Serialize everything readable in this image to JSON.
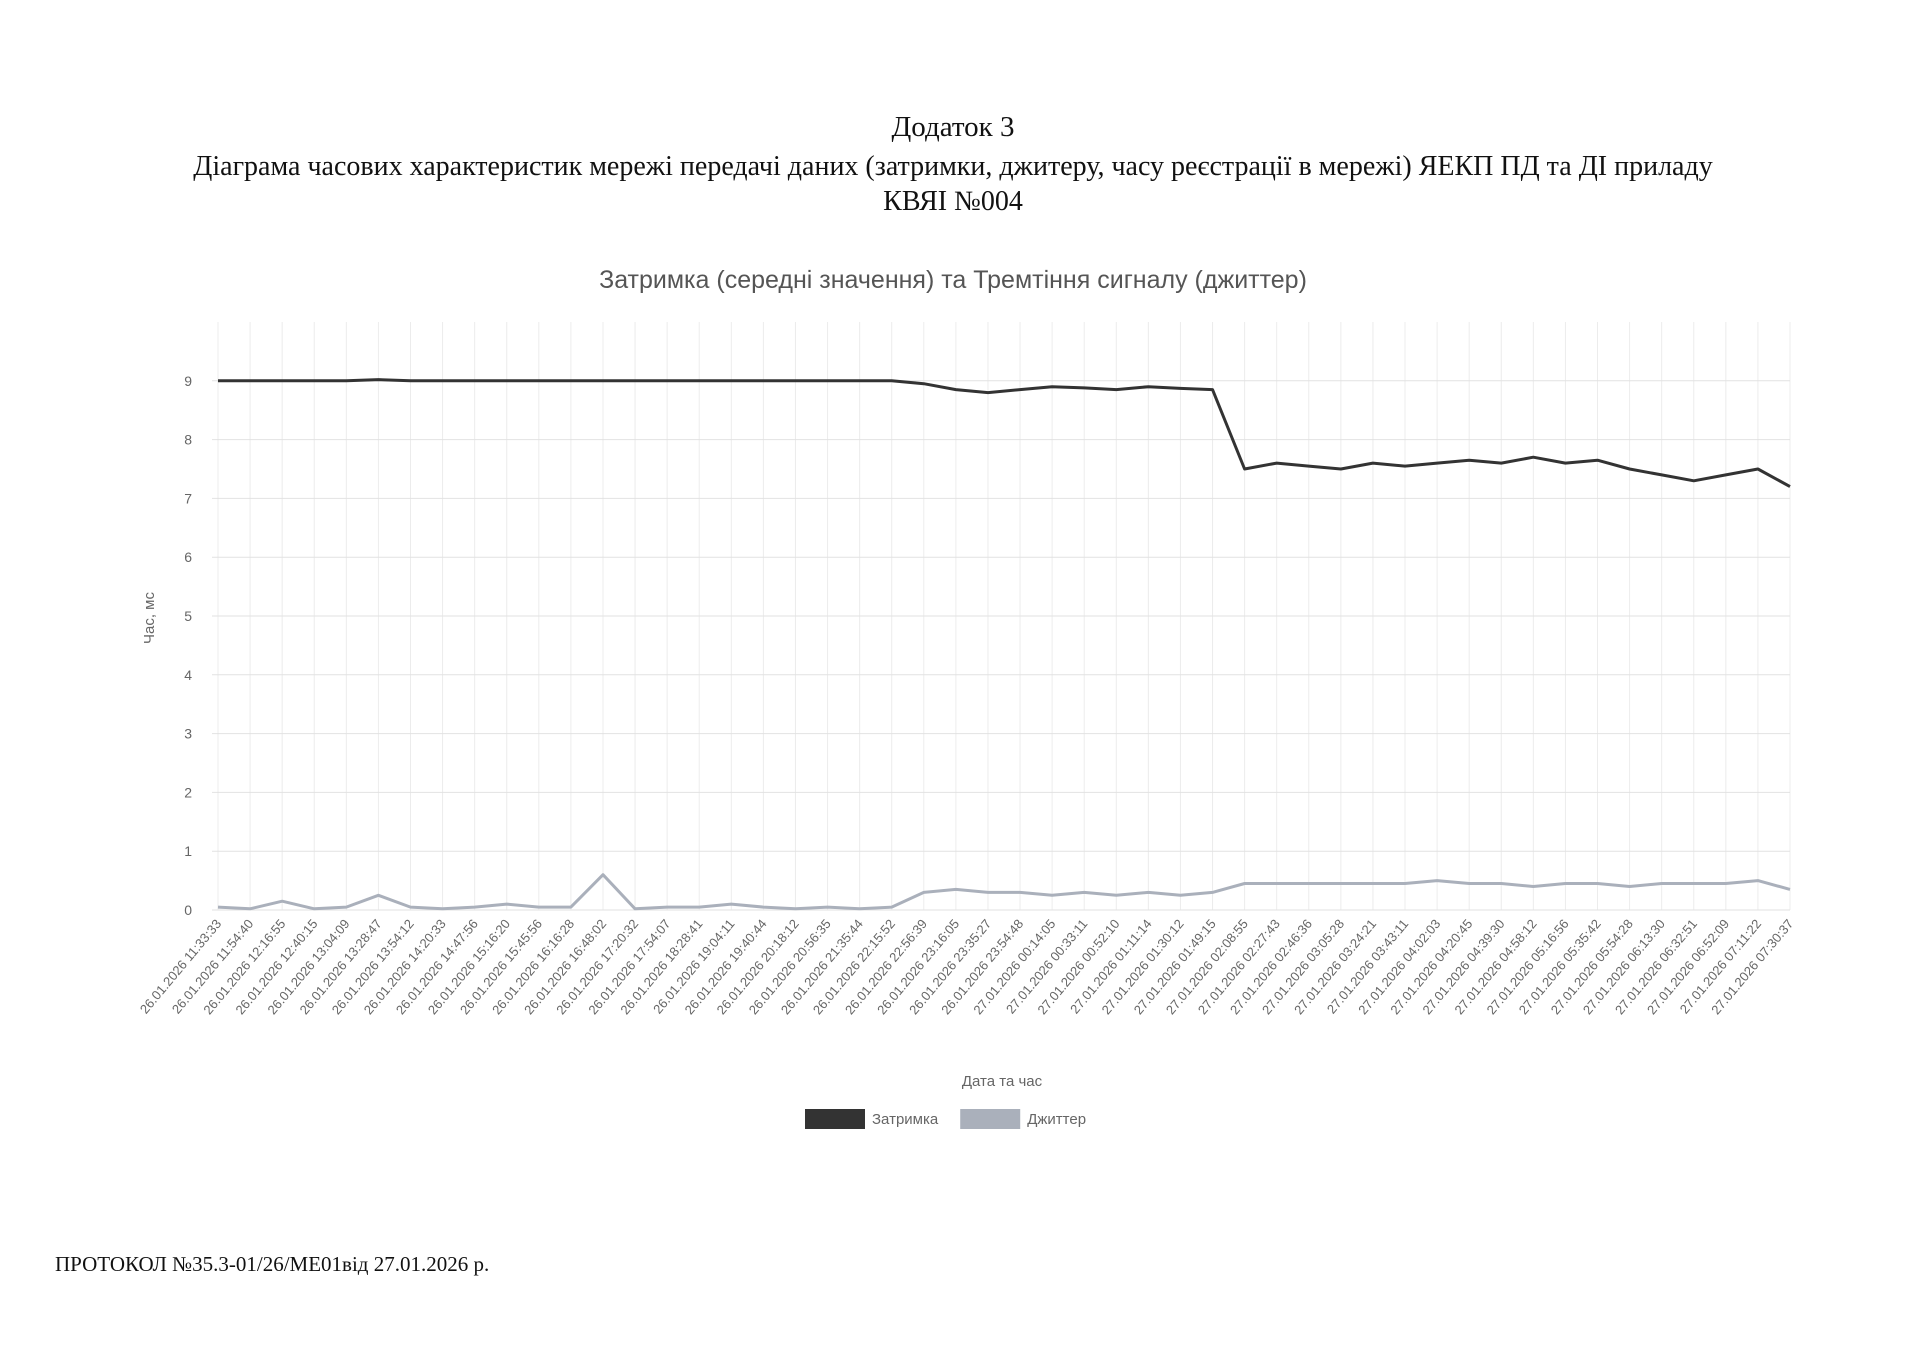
{
  "header": {
    "appendix": "Додаток 3",
    "lines": [
      "Діаграма часових характеристик мережі передачі даних (затримки, джитеру, часу реєстрації в мережі) ЯЕКП ПД та ДІ приладу",
      "КВЯІ №004"
    ]
  },
  "chart_data": {
    "type": "line",
    "title": "Затримка (середні значення) та Тремтіння сигналу (джиттер)",
    "x_label": "Дата та час",
    "y_label": "Час, мс",
    "categories": [
      "26.01.2026 11:33:33",
      "26.01.2026 11:54:40",
      "26.01.2026 12:16:55",
      "26.01.2026 12:40:15",
      "26.01.2026 13:04:09",
      "26.01.2026 13:28:47",
      "26.01.2026 13:54:12",
      "26.01.2026 14:20:33",
      "26.01.2026 14:47:56",
      "26.01.2026 15:16:20",
      "26.01.2026 15:45:56",
      "26.01.2026 16:16:28",
      "26.01.2026 16:48:02",
      "26.01.2026 17:20:32",
      "26.01.2026 17:54:07",
      "26.01.2026 18:28:41",
      "26.01.2026 19:04:11",
      "26.01.2026 19:40:44",
      "26.01.2026 20:18:12",
      "26.01.2026 20:56:35",
      "26.01.2026 21:35:44",
      "26.01.2026 22:15:52",
      "26.01.2026 22:56:39",
      "26.01.2026 23:16:05",
      "26.01.2026 23:35:27",
      "26.01.2026 23:54:48",
      "27.01.2026 00:14:05",
      "27.01.2026 00:33:11",
      "27.01.2026 00:52:10",
      "27.01.2026 01:11:14",
      "27.01.2026 01:30:12",
      "27.01.2026 01:49:15",
      "27.01.2026 02:08:55",
      "27.01.2026 02:27:43",
      "27.01.2026 02:46:36",
      "27.01.2026 03:05:28",
      "27.01.2026 03:24:21",
      "27.01.2026 03:43:11",
      "27.01.2026 04:02:03",
      "27.01.2026 04:20:45",
      "27.01.2026 04:39:30",
      "27.01.2026 04:58:12",
      "27.01.2026 05:16:56",
      "27.01.2026 05:35:42",
      "27.01.2026 05:54:28",
      "27.01.2026 06:13:30",
      "27.01.2026 06:32:51",
      "27.01.2026 06:52:09",
      "27.01.2026 07:11:22",
      "27.01.2026 07:30:37"
    ],
    "series": [
      {
        "name": "Затримка",
        "color": "#333333",
        "values": [
          9.0,
          9.0,
          9.0,
          9.0,
          9.0,
          9.02,
          9.0,
          9.0,
          9.0,
          9.0,
          9.0,
          9.0,
          9.0,
          9.0,
          9.0,
          9.0,
          9.0,
          9.0,
          9.0,
          9.0,
          9.0,
          9.0,
          8.95,
          8.85,
          8.8,
          8.85,
          8.9,
          8.88,
          8.85,
          8.9,
          8.87,
          8.85,
          7.5,
          7.6,
          7.55,
          7.5,
          7.6,
          7.55,
          7.6,
          7.65,
          7.6,
          7.7,
          7.6,
          7.65,
          7.5,
          7.4,
          7.3,
          7.4,
          7.5,
          7.2
        ]
      },
      {
        "name": "Джиттер",
        "color": "#aab0bb",
        "values": [
          0.05,
          0.02,
          0.15,
          0.02,
          0.05,
          0.25,
          0.05,
          0.02,
          0.05,
          0.1,
          0.05,
          0.05,
          0.6,
          0.02,
          0.05,
          0.05,
          0.1,
          0.05,
          0.02,
          0.05,
          0.02,
          0.05,
          0.3,
          0.35,
          0.3,
          0.3,
          0.25,
          0.3,
          0.25,
          0.3,
          0.25,
          0.3,
          0.45,
          0.45,
          0.45,
          0.45,
          0.45,
          0.45,
          0.5,
          0.45,
          0.45,
          0.4,
          0.45,
          0.45,
          0.4,
          0.45,
          0.45,
          0.45,
          0.5,
          0.35
        ]
      }
    ],
    "ylim": [
      0,
      10
    ],
    "yticks": [
      0,
      1,
      2,
      3,
      4,
      5,
      6,
      7,
      8,
      9
    ],
    "grid": true,
    "legend": "bottom"
  },
  "footer": "ПРОТОКОЛ №35.3-01/26/МЕ01від 27.01.2026 р."
}
